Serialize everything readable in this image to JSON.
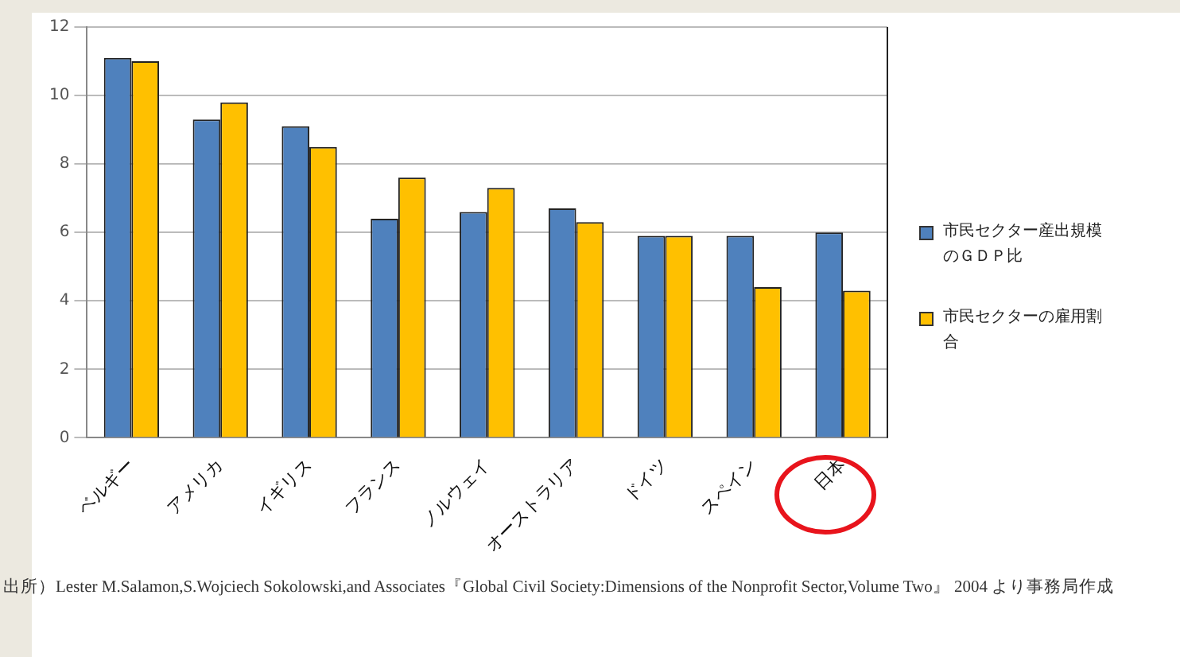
{
  "chart_data": {
    "type": "bar",
    "categories": [
      "ベルギー",
      "アメリカ",
      "イギリス",
      "フランス",
      "ノルウェイ",
      "オーストラリア",
      "ドイツ",
      "スペイン",
      "日本"
    ],
    "series": [
      {
        "name": "市民セクター産出規模のＧＤＰ比",
        "color": "#4f81bd",
        "values": [
          11.1,
          9.3,
          9.1,
          6.4,
          6.6,
          6.7,
          5.9,
          5.9,
          6.0
        ]
      },
      {
        "name": "市民セクターの雇用割合",
        "color": "#ffc000",
        "values": [
          11.0,
          9.8,
          8.5,
          7.6,
          7.3,
          6.3,
          5.9,
          4.4,
          4.3
        ]
      }
    ],
    "ylim": [
      0,
      12
    ],
    "yticks": [
      0,
      2,
      4,
      6,
      8,
      10,
      12
    ],
    "grid": "y",
    "legend": "right",
    "annotations": [
      "出所）Lester M.Salamon,S.Wojciech Sokolowski,and Associates『Global Civil Society:Dimensions of the Nonprofit Sector,Volume Two』 2004 より事務局作成"
    ]
  }
}
